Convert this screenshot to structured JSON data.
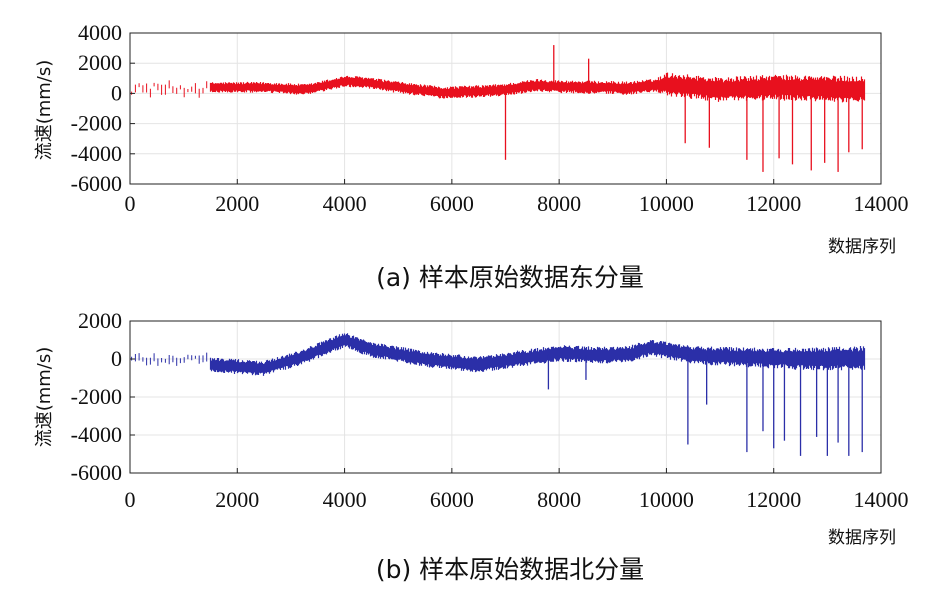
{
  "chart_data": [
    {
      "type": "line",
      "component": "east",
      "ylabel": "流速(mm/s)",
      "xlabel": "数据序列",
      "caption": "(a) 样本原始数据东分量",
      "xlim": [
        0,
        14000
      ],
      "ylim": [
        -6000,
        4000
      ],
      "xticks": [
        0,
        2000,
        4000,
        6000,
        8000,
        10000,
        12000,
        14000
      ],
      "xtick_labels": [
        "0",
        "2000",
        "4000",
        "6000",
        "8000",
        "10000",
        "12000",
        "14000"
      ],
      "yticks": [
        4000,
        2000,
        0,
        -2000,
        -4000,
        -6000
      ],
      "ytick_labels": [
        "4000",
        "2000",
        "0",
        "-2000",
        "-4000",
        "-6000"
      ],
      "color": "#e8101e",
      "series": [
        {
          "name": "东分量",
          "baseline": {
            "x": [
              1500,
              2500,
              3300,
              4000,
              4300,
              5000,
              5800,
              6600,
              7000,
              7600,
              8000,
              8800,
              9300,
              10000,
              11000,
              12000,
              13000,
              13700
            ],
            "y": [
              400,
              400,
              250,
              800,
              750,
              400,
              50,
              150,
              250,
              550,
              450,
              400,
              350,
              600,
              250,
              400,
              300,
              250
            ]
          },
          "noise_amplitude": {
            "x": [
              1500,
              9800,
              10000,
              13700
            ],
            "y": [
              350,
              450,
              800,
              900
            ]
          },
          "sparse_segment": {
            "x_range": [
              0,
              1500
            ],
            "center": 300,
            "amplitude": 500
          },
          "spikes": [
            {
              "x": 7000,
              "y": -4400
            },
            {
              "x": 7900,
              "y": 3200
            },
            {
              "x": 8550,
              "y": 2300
            },
            {
              "x": 10350,
              "y": -3300
            },
            {
              "x": 10800,
              "y": -3600
            },
            {
              "x": 11500,
              "y": -4400
            },
            {
              "x": 11800,
              "y": -5200
            },
            {
              "x": 12100,
              "y": -4300
            },
            {
              "x": 12350,
              "y": -4700
            },
            {
              "x": 12700,
              "y": -5100
            },
            {
              "x": 12950,
              "y": -4600
            },
            {
              "x": 13200,
              "y": -5200
            },
            {
              "x": 13400,
              "y": -3900
            },
            {
              "x": 13650,
              "y": -3700
            }
          ]
        }
      ]
    },
    {
      "type": "line",
      "component": "north",
      "ylabel": "流速(mm/s)",
      "xlabel": "数据序列",
      "caption": "(b) 样本原始数据北分量",
      "xlim": [
        0,
        14000
      ],
      "ylim": [
        -6000,
        2000
      ],
      "xticks": [
        0,
        2000,
        4000,
        6000,
        8000,
        10000,
        12000,
        14000
      ],
      "xtick_labels": [
        "0",
        "2000",
        "4000",
        "6000",
        "8000",
        "10000",
        "12000",
        "14000"
      ],
      "yticks": [
        2000,
        0,
        -2000,
        -4000,
        -6000
      ],
      "ytick_labels": [
        "2000",
        "0",
        "-2000",
        "-4000",
        "-6000"
      ],
      "color": "#2b2fa8",
      "series": [
        {
          "name": "北分量",
          "baseline": {
            "x": [
              1500,
              2500,
              3200,
              4000,
              4500,
              5500,
              6500,
              7200,
              8000,
              8800,
              9300,
              9700,
              10500,
              11500,
              12500,
              13700
            ],
            "y": [
              -300,
              -500,
              100,
              1000,
              500,
              0,
              -300,
              0,
              300,
              200,
              250,
              600,
              200,
              100,
              0,
              50
            ]
          },
          "noise_amplitude": {
            "x": [
              1500,
              10000,
              13700
            ],
            "y": [
              400,
              450,
              650
            ]
          },
          "sparse_segment": {
            "x_range": [
              0,
              1500
            ],
            "center": 0,
            "amplitude": 350
          },
          "spikes": [
            {
              "x": 7800,
              "y": -1600
            },
            {
              "x": 8500,
              "y": -1100
            },
            {
              "x": 10400,
              "y": -4500
            },
            {
              "x": 10750,
              "y": -2400
            },
            {
              "x": 11500,
              "y": -4900
            },
            {
              "x": 11800,
              "y": -3800
            },
            {
              "x": 12000,
              "y": -4700
            },
            {
              "x": 12200,
              "y": -4300
            },
            {
              "x": 12500,
              "y": -5100
            },
            {
              "x": 12800,
              "y": -4100
            },
            {
              "x": 13000,
              "y": -5100
            },
            {
              "x": 13200,
              "y": -4400
            },
            {
              "x": 13400,
              "y": -5100
            },
            {
              "x": 13650,
              "y": -4900
            }
          ]
        }
      ]
    }
  ]
}
